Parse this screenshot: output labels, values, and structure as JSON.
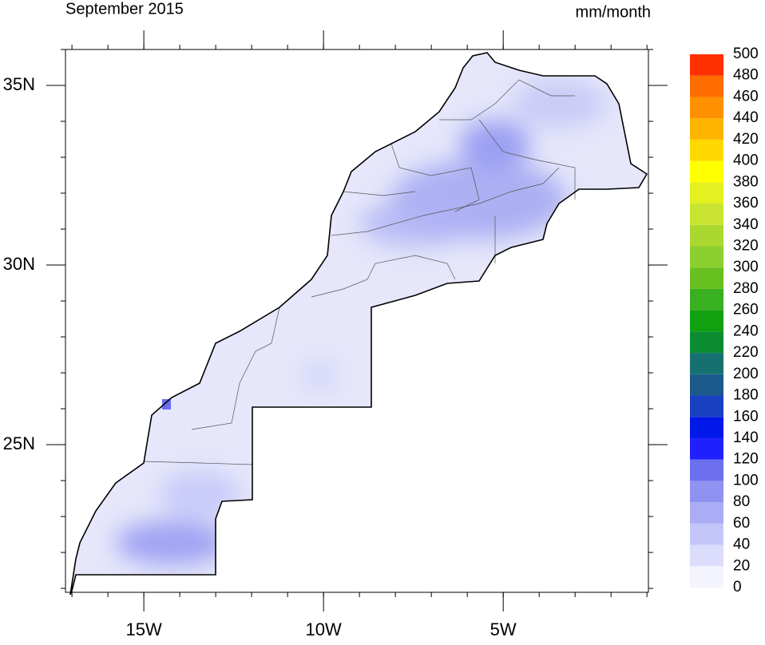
{
  "map": {
    "title": "September 2015",
    "units": "mm/month",
    "xlim": [
      -17.18,
      -0.96
    ],
    "ylim": [
      20.89,
      36.0
    ],
    "xticks": [
      {
        "value": -15,
        "label": "15W"
      },
      {
        "value": -10,
        "label": "10W"
      },
      {
        "value": -5,
        "label": "5W"
      }
    ],
    "yticks": [
      {
        "value": 35,
        "label": "35N"
      },
      {
        "value": 30,
        "label": "30N"
      },
      {
        "value": 25,
        "label": "25N"
      }
    ],
    "colorbar": {
      "ticks": [
        0,
        20,
        40,
        60,
        80,
        100,
        120,
        140,
        160,
        180,
        200,
        220,
        240,
        260,
        280,
        300,
        320,
        340,
        360,
        380,
        400,
        420,
        440,
        460,
        480,
        500
      ],
      "colors": [
        "#f4f4ff",
        "#dcdcfc",
        "#c4c6fa",
        "#aaacf6",
        "#9092f2",
        "#6c70ee",
        "#2020ff",
        "#0018e8",
        "#1840c0",
        "#1c5a8c",
        "#177070",
        "#0c8c30",
        "#10a010",
        "#38b020",
        "#68c020",
        "#8cd030",
        "#aad830",
        "#c8e430",
        "#e4f020",
        "#ffff00",
        "#ffd800",
        "#ffb400",
        "#ff9000",
        "#ff6c00",
        "#ff3000"
      ]
    }
  }
}
